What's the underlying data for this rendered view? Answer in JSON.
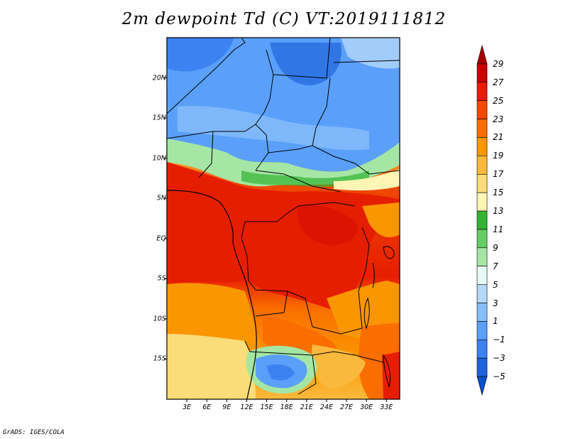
{
  "title": "2m dewpoint Td (C) VT:2019111812",
  "credit": "GrADS: IGES/COLA",
  "map": {
    "lon_range": [
      0,
      35
    ],
    "lat_range": [
      -20,
      25
    ],
    "lat_labels": [
      "20N",
      "15N",
      "10N",
      "5N",
      "EQ",
      "5S",
      "10S",
      "15S"
    ],
    "lon_labels": [
      "3E",
      "6E",
      "9E",
      "12E",
      "15E",
      "18E",
      "21E",
      "24E",
      "27E",
      "30E",
      "33E"
    ]
  },
  "colorbar": {
    "labels": [
      "29",
      "27",
      "25",
      "23",
      "21",
      "19",
      "17",
      "15",
      "13",
      "11",
      "9",
      "7",
      "5",
      "3",
      "1",
      "-1",
      "-3",
      "-5"
    ],
    "colors": [
      "#a50000",
      "#c80000",
      "#e61e00",
      "#f04b00",
      "#fa6e00",
      "#fa9600",
      "#fab93c",
      "#fadc78",
      "#fff5b4",
      "#32b432",
      "#64cd64",
      "#a5e6a5",
      "#e6faf5",
      "#b4d7fa",
      "#87befa",
      "#5aa0fa",
      "#3c82f0",
      "#1e64dc",
      "#0a50c8"
    ]
  }
}
